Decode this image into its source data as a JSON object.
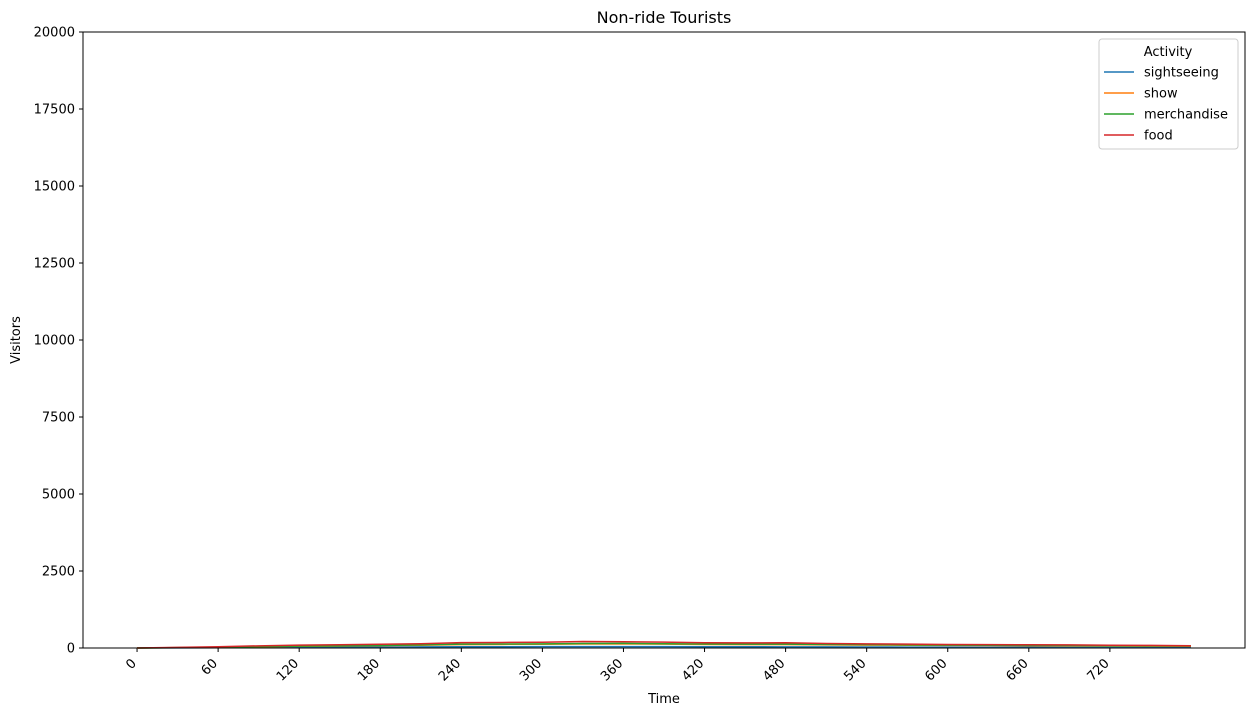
{
  "chart_data": {
    "type": "line",
    "title": "Non-ride Tourists",
    "xlabel": "Time",
    "ylabel": "Visitors",
    "xlim": [
      -40,
      820
    ],
    "ylim": [
      0,
      20000
    ],
    "xticks": [
      0,
      60,
      120,
      180,
      240,
      300,
      360,
      420,
      480,
      540,
      600,
      660,
      720
    ],
    "yticks": [
      0,
      2500,
      5000,
      7500,
      10000,
      12500,
      15000,
      17500,
      20000
    ],
    "grid": false,
    "legend": {
      "title": "Activity",
      "placement": "top-right"
    },
    "x": [
      0,
      30,
      60,
      90,
      120,
      150,
      180,
      210,
      240,
      270,
      300,
      330,
      360,
      390,
      420,
      450,
      480,
      510,
      540,
      570,
      600,
      630,
      660,
      690,
      720,
      750,
      780
    ],
    "series": [
      {
        "name": "sightseeing",
        "color": "#1f77b4",
        "values": [
          0,
          5,
          10,
          15,
          20,
          25,
          30,
          35,
          40,
          42,
          44,
          45,
          45,
          44,
          42,
          40,
          38,
          35,
          32,
          30,
          28,
          26,
          24,
          22,
          20,
          18,
          16
        ]
      },
      {
        "name": "show",
        "color": "#ff7f0e",
        "values": [
          0,
          10,
          20,
          40,
          55,
          65,
          75,
          90,
          110,
          115,
          120,
          130,
          130,
          125,
          115,
          110,
          110,
          100,
          95,
          90,
          85,
          80,
          75,
          70,
          65,
          60,
          55
        ]
      },
      {
        "name": "merchandise",
        "color": "#2ca02c",
        "values": [
          0,
          12,
          25,
          45,
          60,
          70,
          80,
          100,
          125,
          130,
          135,
          145,
          150,
          140,
          130,
          125,
          125,
          115,
          110,
          100,
          95,
          90,
          85,
          80,
          75,
          70,
          65
        ]
      },
      {
        "name": "food",
        "color": "#d62728",
        "values": [
          0,
          20,
          40,
          70,
          95,
          105,
          120,
          140,
          175,
          180,
          185,
          210,
          205,
          190,
          170,
          165,
          170,
          145,
          135,
          125,
          115,
          110,
          105,
          100,
          90,
          85,
          75
        ]
      }
    ]
  }
}
